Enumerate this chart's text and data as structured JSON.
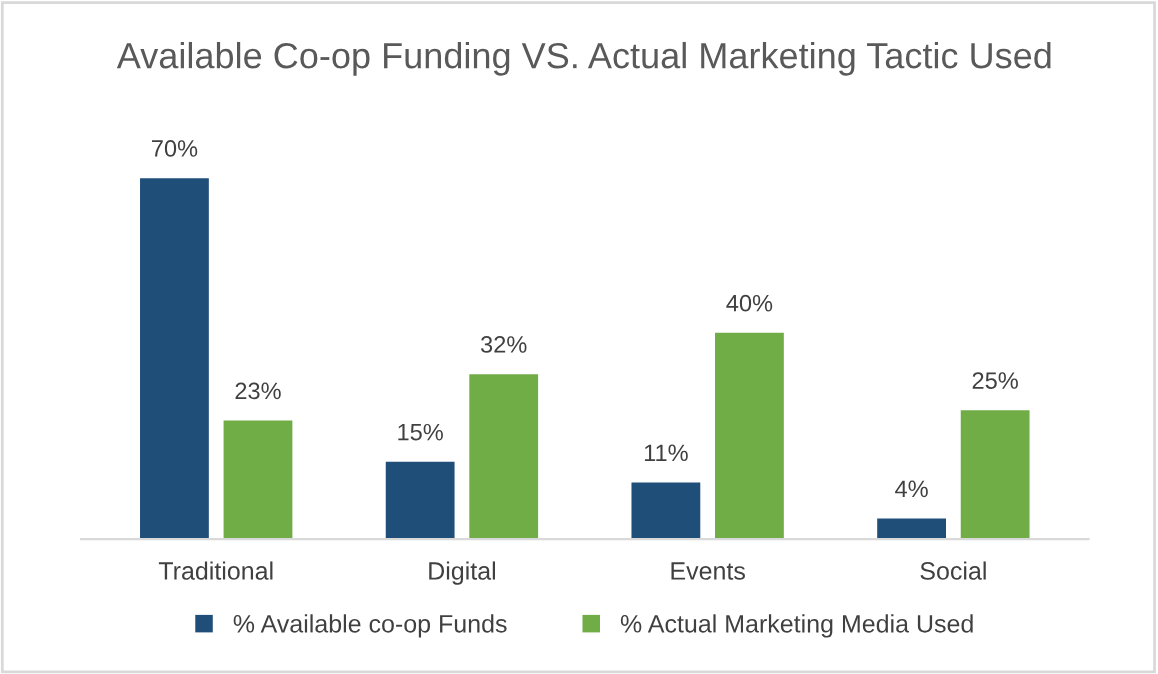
{
  "chart_data": {
    "type": "bar",
    "title": "Available Co-op Funding VS. Actual Marketing Tactic Used",
    "categories": [
      "Traditional",
      "Digital",
      "Events",
      "Social"
    ],
    "series": [
      {
        "name": "% Available co-op Funds",
        "color": "#1f4e79",
        "values": [
          70,
          15,
          11,
          4
        ],
        "value_labels": [
          "70%",
          "15%",
          "11%",
          "4%"
        ]
      },
      {
        "name": "% Actual Marketing Media Used",
        "color": "#70ad47",
        "values": [
          23,
          32,
          40,
          25
        ],
        "value_labels": [
          "23%",
          "32%",
          "40%",
          "25%"
        ]
      }
    ],
    "legend": "bottom"
  }
}
